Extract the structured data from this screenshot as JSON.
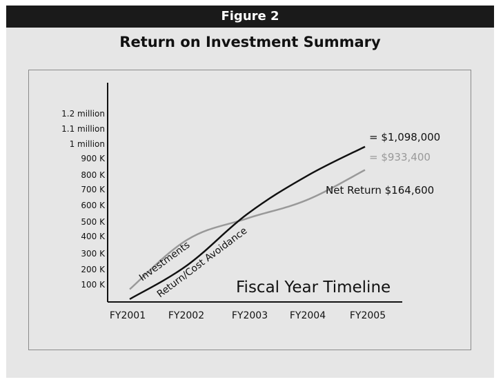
{
  "header": {
    "figure_label": "Figure 2",
    "title": "Return on Investment Summary"
  },
  "colors": {
    "return_line": "#111111",
    "investment_line": "#999999",
    "header_bar": "#1a1a1a",
    "panel_bg": "#e6e6e6"
  },
  "chart_data": {
    "type": "line",
    "title": "Return on Investment Summary",
    "xlabel": "Fiscal Year Timeline",
    "ylabel": "",
    "categories": [
      "FY2001",
      "FY2002",
      "FY2003",
      "FY2004",
      "FY2005"
    ],
    "y_tick_labels": [
      "100 K",
      "200 K",
      "300 K",
      "400 K",
      "500 K",
      "600 K",
      "700 K",
      "800 K",
      "900 K",
      "1 million",
      "1.1 million",
      "1.2 million"
    ],
    "ylim": [
      0,
      1300000
    ],
    "grid": false,
    "legend": "none",
    "series": [
      {
        "name": "Investments",
        "color": "#999999",
        "values": [
          90000,
          440000,
          590000,
          720000,
          933400
        ]
      },
      {
        "name": "Return/Cost Avoidance",
        "color": "#111111",
        "values": [
          20000,
          260000,
          620000,
          890000,
          1098000
        ]
      }
    ],
    "annotations": {
      "return_end": "= $1,098,000",
      "investment_end": "= $933,400",
      "net_return": "Net Return $164,600"
    }
  }
}
